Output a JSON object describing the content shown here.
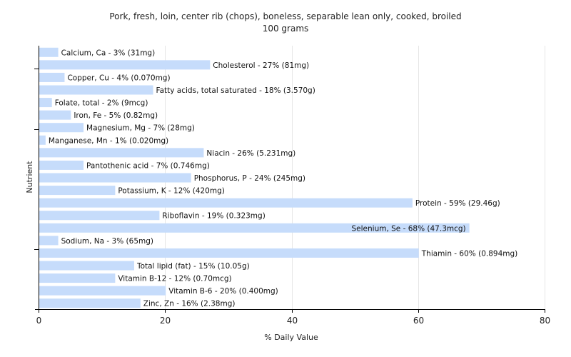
{
  "chart_data": {
    "type": "bar",
    "orientation": "horizontal",
    "title": "Pork, fresh, loin, center rib (chops), boneless, separable lean only, cooked, broiled",
    "subtitle": "100 grams",
    "xlabel": "% Daily Value",
    "ylabel": "Nutrient",
    "xlim": [
      0,
      80
    ],
    "xticks": [
      0,
      20,
      40,
      60,
      80
    ],
    "grid": true,
    "bar_color": "#c6dcfb",
    "categories": [
      "Calcium, Ca",
      "Cholesterol",
      "Copper, Cu",
      "Fatty acids, total saturated",
      "Folate, total",
      "Iron, Fe",
      "Magnesium, Mg",
      "Manganese, Mn",
      "Niacin",
      "Pantothenic acid",
      "Phosphorus, P",
      "Potassium, K",
      "Protein",
      "Riboflavin",
      "Selenium, Se",
      "Sodium, Na",
      "Thiamin",
      "Total lipid (fat)",
      "Vitamin B-12",
      "Vitamin B-6",
      "Zinc, Zn"
    ],
    "values": [
      3,
      27,
      4,
      18,
      2,
      5,
      7,
      1,
      26,
      7,
      24,
      12,
      59,
      19,
      68,
      3,
      60,
      15,
      12,
      20,
      16
    ],
    "labels": [
      "Calcium, Ca - 3% (31mg)",
      "Cholesterol - 27% (81mg)",
      "Copper, Cu - 4% (0.070mg)",
      "Fatty acids, total saturated - 18% (3.570g)",
      "Folate, total - 2% (9mcg)",
      "Iron, Fe - 5% (0.82mg)",
      "Magnesium, Mg - 7% (28mg)",
      "Manganese, Mn - 1% (0.020mg)",
      "Niacin - 26% (5.231mg)",
      "Pantothenic acid - 7% (0.746mg)",
      "Phosphorus, P - 24% (245mg)",
      "Potassium, K - 12% (420mg)",
      "Protein - 59% (29.46g)",
      "Riboflavin - 19% (0.323mg)",
      "Selenium, Se - 68% (47.3mcg)",
      "Sodium, Na - 3% (65mg)",
      "Thiamin - 60% (0.894mg)",
      "Total lipid (fat) - 15% (10.05g)",
      "Vitamin B-12 - 12% (0.70mcg)",
      "Vitamin B-6 - 20% (0.400mg)",
      "Zinc, Zn - 16% (2.38mg)"
    ]
  }
}
